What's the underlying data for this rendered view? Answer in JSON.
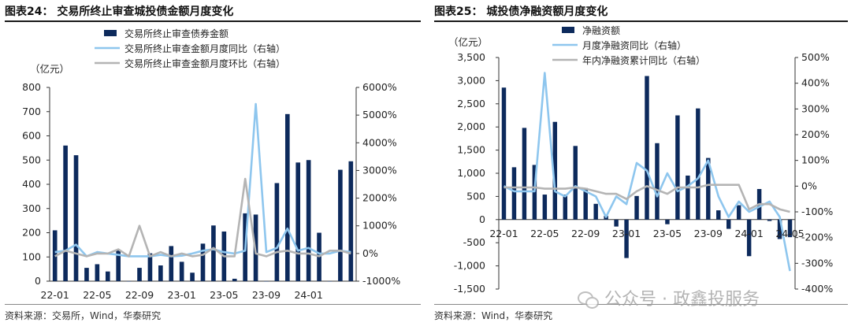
{
  "charts": [
    {
      "title": "图表24：  交易所终止审查城投债金额月度变化",
      "source": "资料来源：交易所，Wind，华泰研究",
      "chart_data": {
        "type": "bar+line",
        "x": [
          "22-01",
          "22-02",
          "22-03",
          "22-04",
          "22-05",
          "22-06",
          "22-07",
          "22-08",
          "22-09",
          "22-10",
          "22-11",
          "22-12",
          "23-01",
          "23-02",
          "23-03",
          "23-04",
          "23-05",
          "23-06",
          "23-07",
          "23-08",
          "23-09",
          "23-10",
          "23-11",
          "23-12",
          "24-01",
          "24-02",
          "24-03",
          "24-04",
          "24-05"
        ],
        "x_tick_labels": [
          "22-01",
          "22-05",
          "22-09",
          "23-01",
          "23-05",
          "23-09",
          "24-01"
        ],
        "left_unit": "（亿元）",
        "left_ylim": [
          0,
          800
        ],
        "left_ticks": [
          "0",
          "100",
          "200",
          "300",
          "400",
          "500",
          "600",
          "700",
          "800"
        ],
        "right_ylim": [
          -1000,
          6000
        ],
        "right_ticks": [
          "-1000%",
          "0%",
          "1000%",
          "2000%",
          "3000%",
          "4000%",
          "5000%",
          "6000%"
        ],
        "series": [
          {
            "name": "交易所终止审查债券金额",
            "axis": "left",
            "kind": "bar",
            "color": "#0d2a5c",
            "values": [
              210,
              560,
              520,
              55,
              70,
              40,
              130,
              0,
              55,
              115,
              65,
              145,
              80,
              35,
              155,
              230,
              205,
              10,
              280,
              275,
              0,
              405,
              690,
              490,
              500,
              200,
              0,
              460,
              495
            ]
          },
          {
            "name": "交易所终止审查金额月度同比（右轴）",
            "axis": "right",
            "kind": "line",
            "color": "#8ec6ee",
            "values": [
              50,
              100,
              320,
              -100,
              50,
              0,
              -50,
              -100,
              -100,
              -100,
              -50,
              -100,
              -80,
              0,
              100,
              150,
              50,
              0,
              100,
              5400,
              50,
              200,
              900,
              100,
              200,
              0,
              0,
              100,
              50
            ]
          },
          {
            "name": "交易所终止审查金额月度环比（右轴）",
            "axis": "right",
            "kind": "line",
            "color": "#b4b4b4",
            "values": [
              -100,
              100,
              0,
              -100,
              0,
              0,
              150,
              -100,
              1000,
              -100,
              50,
              -100,
              0,
              -100,
              -50,
              200,
              -100,
              -100,
              2700,
              0,
              -100,
              50,
              100,
              0,
              0,
              -100,
              100,
              100,
              0
            ]
          }
        ]
      }
    },
    {
      "title": "图表25：  城投债净融资额月度变化",
      "source": "资料来源：Wind，华泰研究",
      "chart_data": {
        "type": "bar+line",
        "x": [
          "22-01",
          "22-02",
          "22-03",
          "22-04",
          "22-05",
          "22-06",
          "22-07",
          "22-08",
          "22-09",
          "22-10",
          "22-11",
          "22-12",
          "23-01",
          "23-02",
          "23-03",
          "23-04",
          "23-05",
          "23-06",
          "23-07",
          "23-08",
          "23-09",
          "23-10",
          "23-11",
          "23-12",
          "24-01",
          "24-02",
          "24-03",
          "24-04",
          "24-05"
        ],
        "x_tick_labels": [
          "22-01",
          "22-05",
          "22-09",
          "23-01",
          "23-05",
          "23-09",
          "24-01",
          "24-05"
        ],
        "left_unit": "（亿元）",
        "left_ylim": [
          -1500,
          3500
        ],
        "left_ticks": [
          "-1,500",
          "-1,000",
          "-500",
          "0",
          "500",
          "1,000",
          "1,500",
          "2,000",
          "2,500",
          "3,000",
          "3,500"
        ],
        "right_ylim": [
          -400,
          500
        ],
        "right_ticks": [
          "-400%",
          "-300%",
          "-200%",
          "-100%",
          "0%",
          "100%",
          "200%",
          "300%",
          "400%",
          "500%"
        ],
        "series": [
          {
            "name": "净融资额",
            "axis": "left",
            "kind": "bar",
            "color": "#0d2a5c",
            "values": [
              2850,
              1130,
              1980,
              1180,
              540,
              2110,
              540,
              1590,
              680,
              340,
              80,
              -150,
              -830,
              510,
              3100,
              1650,
              -100,
              2250,
              950,
              2400,
              1330,
              200,
              -200,
              310,
              -790,
              660,
              -30,
              -420,
              -380
            ]
          },
          {
            "name": "月度净融资同比（右轴）",
            "axis": "right",
            "kind": "line",
            "color": "#8ec6ee",
            "values": [
              0,
              -20,
              -20,
              -20,
              440,
              -20,
              -40,
              0,
              -20,
              -40,
              -120,
              -40,
              -70,
              90,
              60,
              -40,
              50,
              -20,
              0,
              30,
              100,
              -40,
              -120,
              -60,
              -100,
              -80,
              -60,
              -120,
              -330
            ]
          },
          {
            "name": "年内净融资累计同比（右轴）",
            "axis": "right",
            "kind": "line",
            "color": "#b4b4b4",
            "values": [
              -5,
              -5,
              -5,
              -5,
              -10,
              -10,
              -10,
              -5,
              -10,
              -20,
              -30,
              -30,
              -50,
              -20,
              0,
              -15,
              -30,
              -5,
              -5,
              -5,
              5,
              5,
              5,
              5,
              -90,
              -70,
              -70,
              -90,
              -100
            ]
          }
        ]
      }
    }
  ],
  "watermark": "公众号 · 政鑫投服务"
}
